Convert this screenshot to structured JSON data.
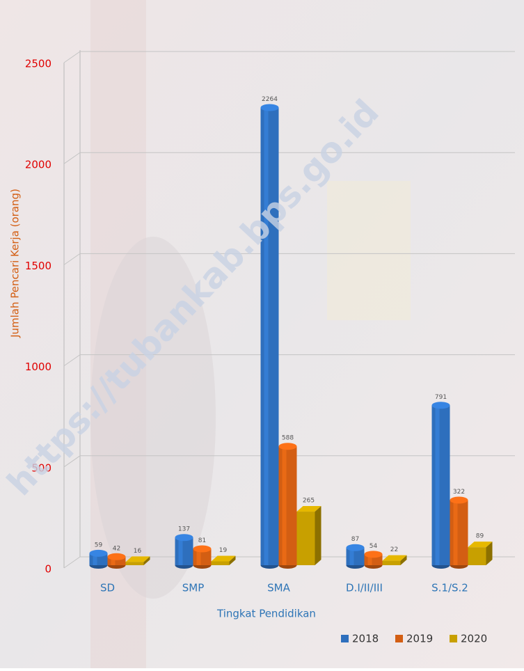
{
  "chart_data": {
    "type": "bar3d",
    "watermark": "https://tubankab.bps.go.id",
    "x_label": "Tingkat Pendidikan",
    "y_label": "Jumlah Pencari Kerja (orang)",
    "categories": [
      "SD",
      "SMP",
      "SMA",
      "D.I/II/III",
      "S.1/S.2"
    ],
    "series": [
      {
        "name": "2018",
        "color": "#2e6fbd",
        "shape": "cylinder",
        "values": [
          59,
          137,
          2264,
          87,
          791
        ]
      },
      {
        "name": "2019",
        "color": "#d35e13",
        "shape": "cylinder",
        "values": [
          42,
          81,
          588,
          54,
          322
        ]
      },
      {
        "name": "2020",
        "color": "#c8a000",
        "shape": "box",
        "values": [
          16,
          19,
          265,
          22,
          89
        ]
      }
    ],
    "ylim": [
      0,
      2500
    ],
    "yticks": [
      0,
      500,
      1000,
      1500,
      2000,
      2500
    ],
    "grid": true,
    "legend": "bottom-right"
  }
}
